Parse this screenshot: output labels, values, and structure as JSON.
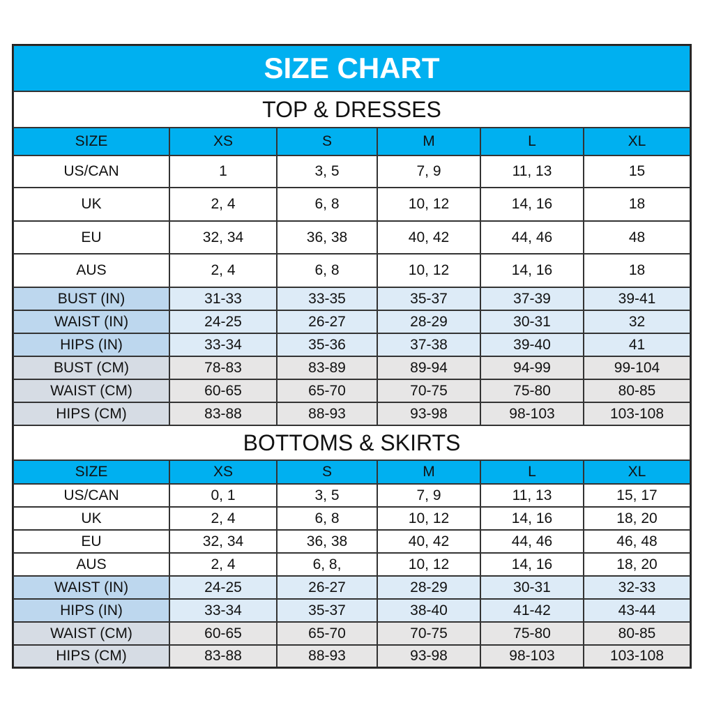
{
  "title": "SIZE CHART",
  "sections": [
    {
      "title": "TOP & DRESSES",
      "header": [
        "SIZE",
        "XS",
        "S",
        "M",
        "L",
        "XL"
      ],
      "rows": [
        [
          "US/CAN",
          "1",
          "3, 5",
          "7, 9",
          "11, 13",
          "15"
        ],
        [
          "UK",
          "2, 4",
          "6, 8",
          "10, 12",
          "14, 16",
          "18"
        ],
        [
          "EU",
          "32, 34",
          "36, 38",
          "40, 42",
          "44, 46",
          "48"
        ],
        [
          "AUS",
          "2, 4",
          "6, 8",
          "10, 12",
          "14, 16",
          "18"
        ],
        [
          "BUST (IN)",
          "31-33",
          "33-35",
          "35-37",
          "37-39",
          "39-41"
        ],
        [
          "WAIST (IN)",
          "24-25",
          "26-27",
          "28-29",
          "30-31",
          "32"
        ],
        [
          "HIPS (IN)",
          "33-34",
          "35-36",
          "37-38",
          "39-40",
          "41"
        ],
        [
          "BUST (CM)",
          "78-83",
          "83-89",
          "89-94",
          "94-99",
          "99-104"
        ],
        [
          "WAIST (CM)",
          "60-65",
          "65-70",
          "70-75",
          "75-80",
          "80-85"
        ],
        [
          "HIPS (CM)",
          "83-88",
          "88-93",
          "93-98",
          "98-103",
          "103-108"
        ]
      ]
    },
    {
      "title": "BOTTOMS & SKIRTS",
      "header": [
        "SIZE",
        "XS",
        "S",
        "M",
        "L",
        "XL"
      ],
      "rows": [
        [
          "US/CAN",
          "0, 1",
          "3, 5",
          "7, 9",
          "11, 13",
          "15, 17"
        ],
        [
          "UK",
          "2, 4",
          "6, 8",
          "10, 12",
          "14, 16",
          "18, 20"
        ],
        [
          "EU",
          "32, 34",
          "36, 38",
          "40, 42",
          "44, 46",
          "46, 48"
        ],
        [
          "AUS",
          "2, 4",
          "6, 8,",
          "10, 12",
          "14, 16",
          "18, 20"
        ],
        [
          "WAIST (IN)",
          "24-25",
          "26-27",
          "28-29",
          "30-31",
          "32-33"
        ],
        [
          "HIPS (IN)",
          "33-34",
          "35-37",
          "38-40",
          "41-42",
          "43-44"
        ],
        [
          "WAIST (CM)",
          "60-65",
          "65-70",
          "70-75",
          "75-80",
          "80-85"
        ],
        [
          "HIPS (CM)",
          "83-88",
          "88-93",
          "93-98",
          "98-103",
          "103-108"
        ]
      ]
    }
  ]
}
